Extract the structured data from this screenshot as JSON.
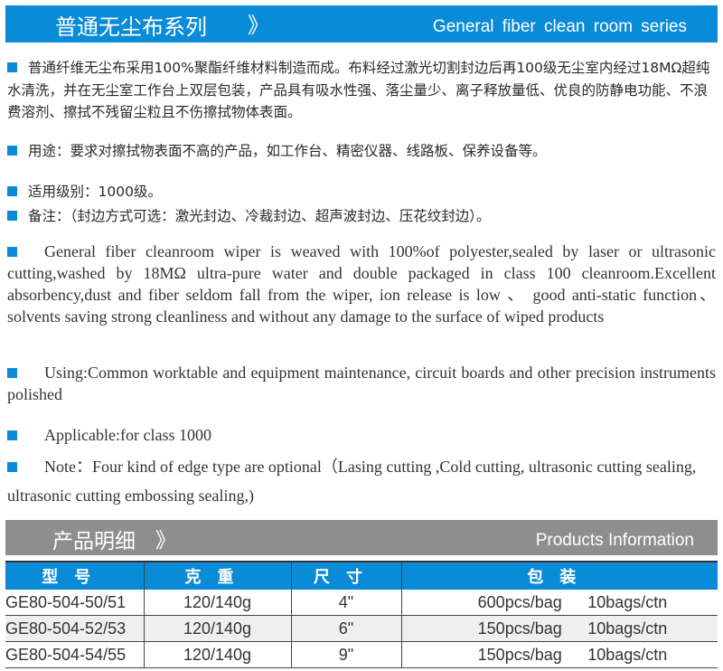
{
  "header": {
    "title_cn": "普通无尘布系列",
    "chevron": "》",
    "title_en": "General fiber clean room series"
  },
  "cn_paragraphs": [
    "普通纤维无尘布采用100%聚酯纤维材料制造而成。布料经过激光切割封边后再100级无尘室内经过18MΩ超纯水清洗，并在无尘室工作台上双层包装，产品具有吸水性强、落尘量少、离子释放量低、优良的防静电功能、不浪费溶剂、擦拭不残留尘粒且不伤擦拭物体表面。",
    "用途：要求对擦拭物表面不高的产品，如工作台、精密仪器、线路板、保养设备等。",
    "适用级别：1000级。",
    "备注：（封边方式可选：激光封边、冷裁封边、超声波封边、压花纹封边）。"
  ],
  "en_paragraphs": [
    "General fiber cleanroom wiper is weaved with 100%of polyester,sealed by laser or ultrasonic cutting,washed by 18MΩ ultra-pure water and double packaged in class 100 cleanroom.Excellent absorbency,dust and fiber seldom fall from the wiper, ion release is low 、 good anti-static function、solvents saving strong cleanliness and without any damage to the surface of wiped products",
    "Using:Common worktable and equipment maintenance, circuit boards and other precision instruments polished",
    "Applicable:for class 1000",
    "Note：Four kind of edge type are optional（Lasing cutting ,Cold cutting, ultrasonic cutting sealing, ultrasonic cutting embossing sealing,)"
  ],
  "products_header": {
    "title_cn": "产品明细",
    "chevron": "》",
    "title_en": "Products Information"
  },
  "table": {
    "columns": [
      "型号",
      "克重",
      "尺寸",
      "包装"
    ],
    "rows": [
      {
        "model": "GE80-504-50/51",
        "weight": "120/140g",
        "size": "4\"",
        "pcs": "600pcs/bag",
        "ctn": "10bags/ctn"
      },
      {
        "model": "GE80-504-52/53",
        "weight": "120/140g",
        "size": "6\"",
        "pcs": "150pcs/bag",
        "ctn": "10bags/ctn"
      },
      {
        "model": "GE80-504-54/55",
        "weight": "120/140g",
        "size": "9\"",
        "pcs": "150pcs/bag",
        "ctn": "10bags/ctn"
      }
    ]
  },
  "colors": {
    "accent": "#0a8bd8",
    "section_grey": "#8e8e8e"
  }
}
